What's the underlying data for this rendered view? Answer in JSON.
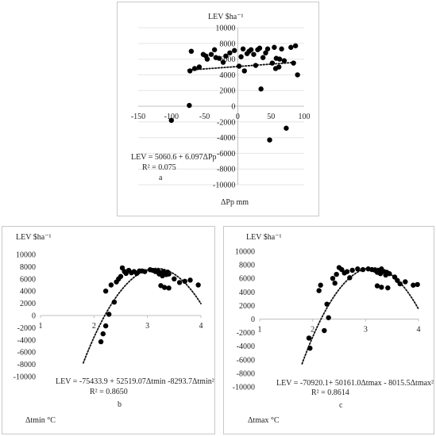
{
  "chart_data": [
    {
      "type": "scatter",
      "panel_letter": "a",
      "ylabel": "LEV $ha⁻¹",
      "xlabel": "ΔPp mm",
      "equation": "LEV = 5060.6 + 6.097ΔPp",
      "r2": "R² = 0.075",
      "xlim": [
        -150,
        100
      ],
      "ylim": [
        -10000,
        10000
      ],
      "xticks": [
        -150,
        -100,
        -50,
        0,
        50,
        100
      ],
      "yticks": [
        -10000,
        -8000,
        -6000,
        -4000,
        -2000,
        0,
        2000,
        4000,
        6000,
        8000,
        10000
      ],
      "trend": {
        "kind": "linear",
        "coef": [
          5060.6,
          6.097
        ],
        "x_range": [
          -75,
          88
        ]
      },
      "points": [
        [
          -100,
          -1800
        ],
        [
          -73,
          100
        ],
        [
          -72,
          4500
        ],
        [
          -70,
          7000
        ],
        [
          -65,
          4800
        ],
        [
          -58,
          5000
        ],
        [
          -52,
          6600
        ],
        [
          -48,
          6400
        ],
        [
          -46,
          6000
        ],
        [
          -40,
          6600
        ],
        [
          -35,
          7200
        ],
        [
          -33,
          6200
        ],
        [
          -28,
          6100
        ],
        [
          -22,
          5600
        ],
        [
          -18,
          6400
        ],
        [
          -12,
          6800
        ],
        [
          -5,
          7100
        ],
        [
          2,
          5100
        ],
        [
          5,
          6300
        ],
        [
          8,
          7300
        ],
        [
          10,
          4500
        ],
        [
          14,
          6700
        ],
        [
          17,
          7000
        ],
        [
          20,
          7200
        ],
        [
          24,
          6600
        ],
        [
          27,
          5200
        ],
        [
          30,
          7200
        ],
        [
          33,
          7400
        ],
        [
          35,
          2200
        ],
        [
          38,
          6200
        ],
        [
          42,
          6800
        ],
        [
          45,
          7300
        ],
        [
          48,
          -4300
        ],
        [
          52,
          5500
        ],
        [
          55,
          7500
        ],
        [
          57,
          4800
        ],
        [
          58,
          6100
        ],
        [
          62,
          5000
        ],
        [
          63,
          6000
        ],
        [
          66,
          7300
        ],
        [
          70,
          5800
        ],
        [
          73,
          -2800
        ],
        [
          80,
          7500
        ],
        [
          84,
          5500
        ],
        [
          87,
          7700
        ],
        [
          90,
          4000
        ]
      ]
    },
    {
      "type": "scatter",
      "panel_letter": "b",
      "ylabel": "LEV $ha⁻¹",
      "xlabel": "Δtmin °C",
      "equation": "LEV = -75433.9 + 52519.07Δtmin -8293.7Δtmin²",
      "r2": "R² = 0.8650",
      "xlim": [
        1,
        4
      ],
      "ylim": [
        -10000,
        10000
      ],
      "xticks": [
        1,
        2,
        3,
        4
      ],
      "yticks": [
        -10000,
        -8000,
        -6000,
        -4000,
        -2000,
        0,
        2000,
        4000,
        6000,
        8000,
        10000
      ],
      "trend": {
        "kind": "quadratic",
        "coef": [
          -75433.9,
          52519.07,
          -8293.7
        ],
        "x_range": [
          1.8,
          4.0
        ]
      },
      "points": [
        [
          2.13,
          -4300
        ],
        [
          2.17,
          -3000
        ],
        [
          2.22,
          -1700
        ],
        [
          2.28,
          200
        ],
        [
          2.22,
          4000
        ],
        [
          2.32,
          5000
        ],
        [
          2.38,
          2200
        ],
        [
          2.42,
          5500
        ],
        [
          2.46,
          6000
        ],
        [
          2.5,
          6400
        ],
        [
          2.53,
          7800
        ],
        [
          2.57,
          7200
        ],
        [
          2.6,
          6900
        ],
        [
          2.65,
          7400
        ],
        [
          2.7,
          7000
        ],
        [
          2.75,
          7200
        ],
        [
          2.8,
          6900
        ],
        [
          2.85,
          7300
        ],
        [
          2.9,
          7300
        ],
        [
          2.95,
          7200
        ],
        [
          3.05,
          7500
        ],
        [
          3.1,
          7400
        ],
        [
          3.15,
          7200
        ],
        [
          3.2,
          7300
        ],
        [
          3.22,
          6800
        ],
        [
          3.25,
          7000
        ],
        [
          3.28,
          6500
        ],
        [
          3.3,
          7200
        ],
        [
          3.32,
          6900
        ],
        [
          3.35,
          6700
        ],
        [
          3.38,
          7100
        ],
        [
          3.4,
          6800
        ],
        [
          3.25,
          4900
        ],
        [
          3.32,
          4600
        ],
        [
          3.4,
          4500
        ],
        [
          3.5,
          6000
        ],
        [
          3.6,
          5400
        ],
        [
          3.7,
          5600
        ],
        [
          3.8,
          5800
        ],
        [
          3.95,
          5000
        ]
      ]
    },
    {
      "type": "scatter",
      "panel_letter": "c",
      "ylabel": "LEV $ha⁻¹",
      "xlabel": "Δtmax °C",
      "equation": "LEV = -70920.1+ 50161.0Δtmax - 8015.5Δtmax²",
      "r2": "R² = 0.8614",
      "xlim": [
        1,
        4
      ],
      "ylim": [
        -10000,
        10000
      ],
      "xticks": [
        1,
        2,
        3,
        4
      ],
      "yticks": [
        -10000,
        -8000,
        -6000,
        -4000,
        -2000,
        0,
        2000,
        4000,
        6000,
        8000,
        10000
      ],
      "trend": {
        "kind": "quadratic",
        "coef": [
          -70920.1,
          50161.0,
          -8015.5
        ],
        "x_range": [
          1.8,
          4.0
        ]
      },
      "points": [
        [
          1.95,
          -4300
        ],
        [
          1.93,
          -2800
        ],
        [
          2.12,
          4200
        ],
        [
          2.15,
          5000
        ],
        [
          2.22,
          -1700
        ],
        [
          2.27,
          2200
        ],
        [
          2.3,
          200
        ],
        [
          2.38,
          6000
        ],
        [
          2.42,
          5300
        ],
        [
          2.45,
          6600
        ],
        [
          2.5,
          7600
        ],
        [
          2.55,
          7300
        ],
        [
          2.6,
          6800
        ],
        [
          2.65,
          7000
        ],
        [
          2.7,
          6100
        ],
        [
          2.75,
          7200
        ],
        [
          2.85,
          7400
        ],
        [
          2.95,
          7300
        ],
        [
          3.05,
          7400
        ],
        [
          3.12,
          7300
        ],
        [
          3.18,
          7200
        ],
        [
          3.22,
          6900
        ],
        [
          3.25,
          7100
        ],
        [
          3.28,
          6700
        ],
        [
          3.3,
          7400
        ],
        [
          3.35,
          7000
        ],
        [
          3.38,
          6500
        ],
        [
          3.4,
          6900
        ],
        [
          3.45,
          6700
        ],
        [
          3.22,
          4900
        ],
        [
          3.3,
          4700
        ],
        [
          3.42,
          4600
        ],
        [
          3.55,
          6200
        ],
        [
          3.6,
          5700
        ],
        [
          3.65,
          5200
        ],
        [
          3.75,
          5500
        ],
        [
          3.9,
          5000
        ],
        [
          3.98,
          5100
        ]
      ]
    }
  ]
}
